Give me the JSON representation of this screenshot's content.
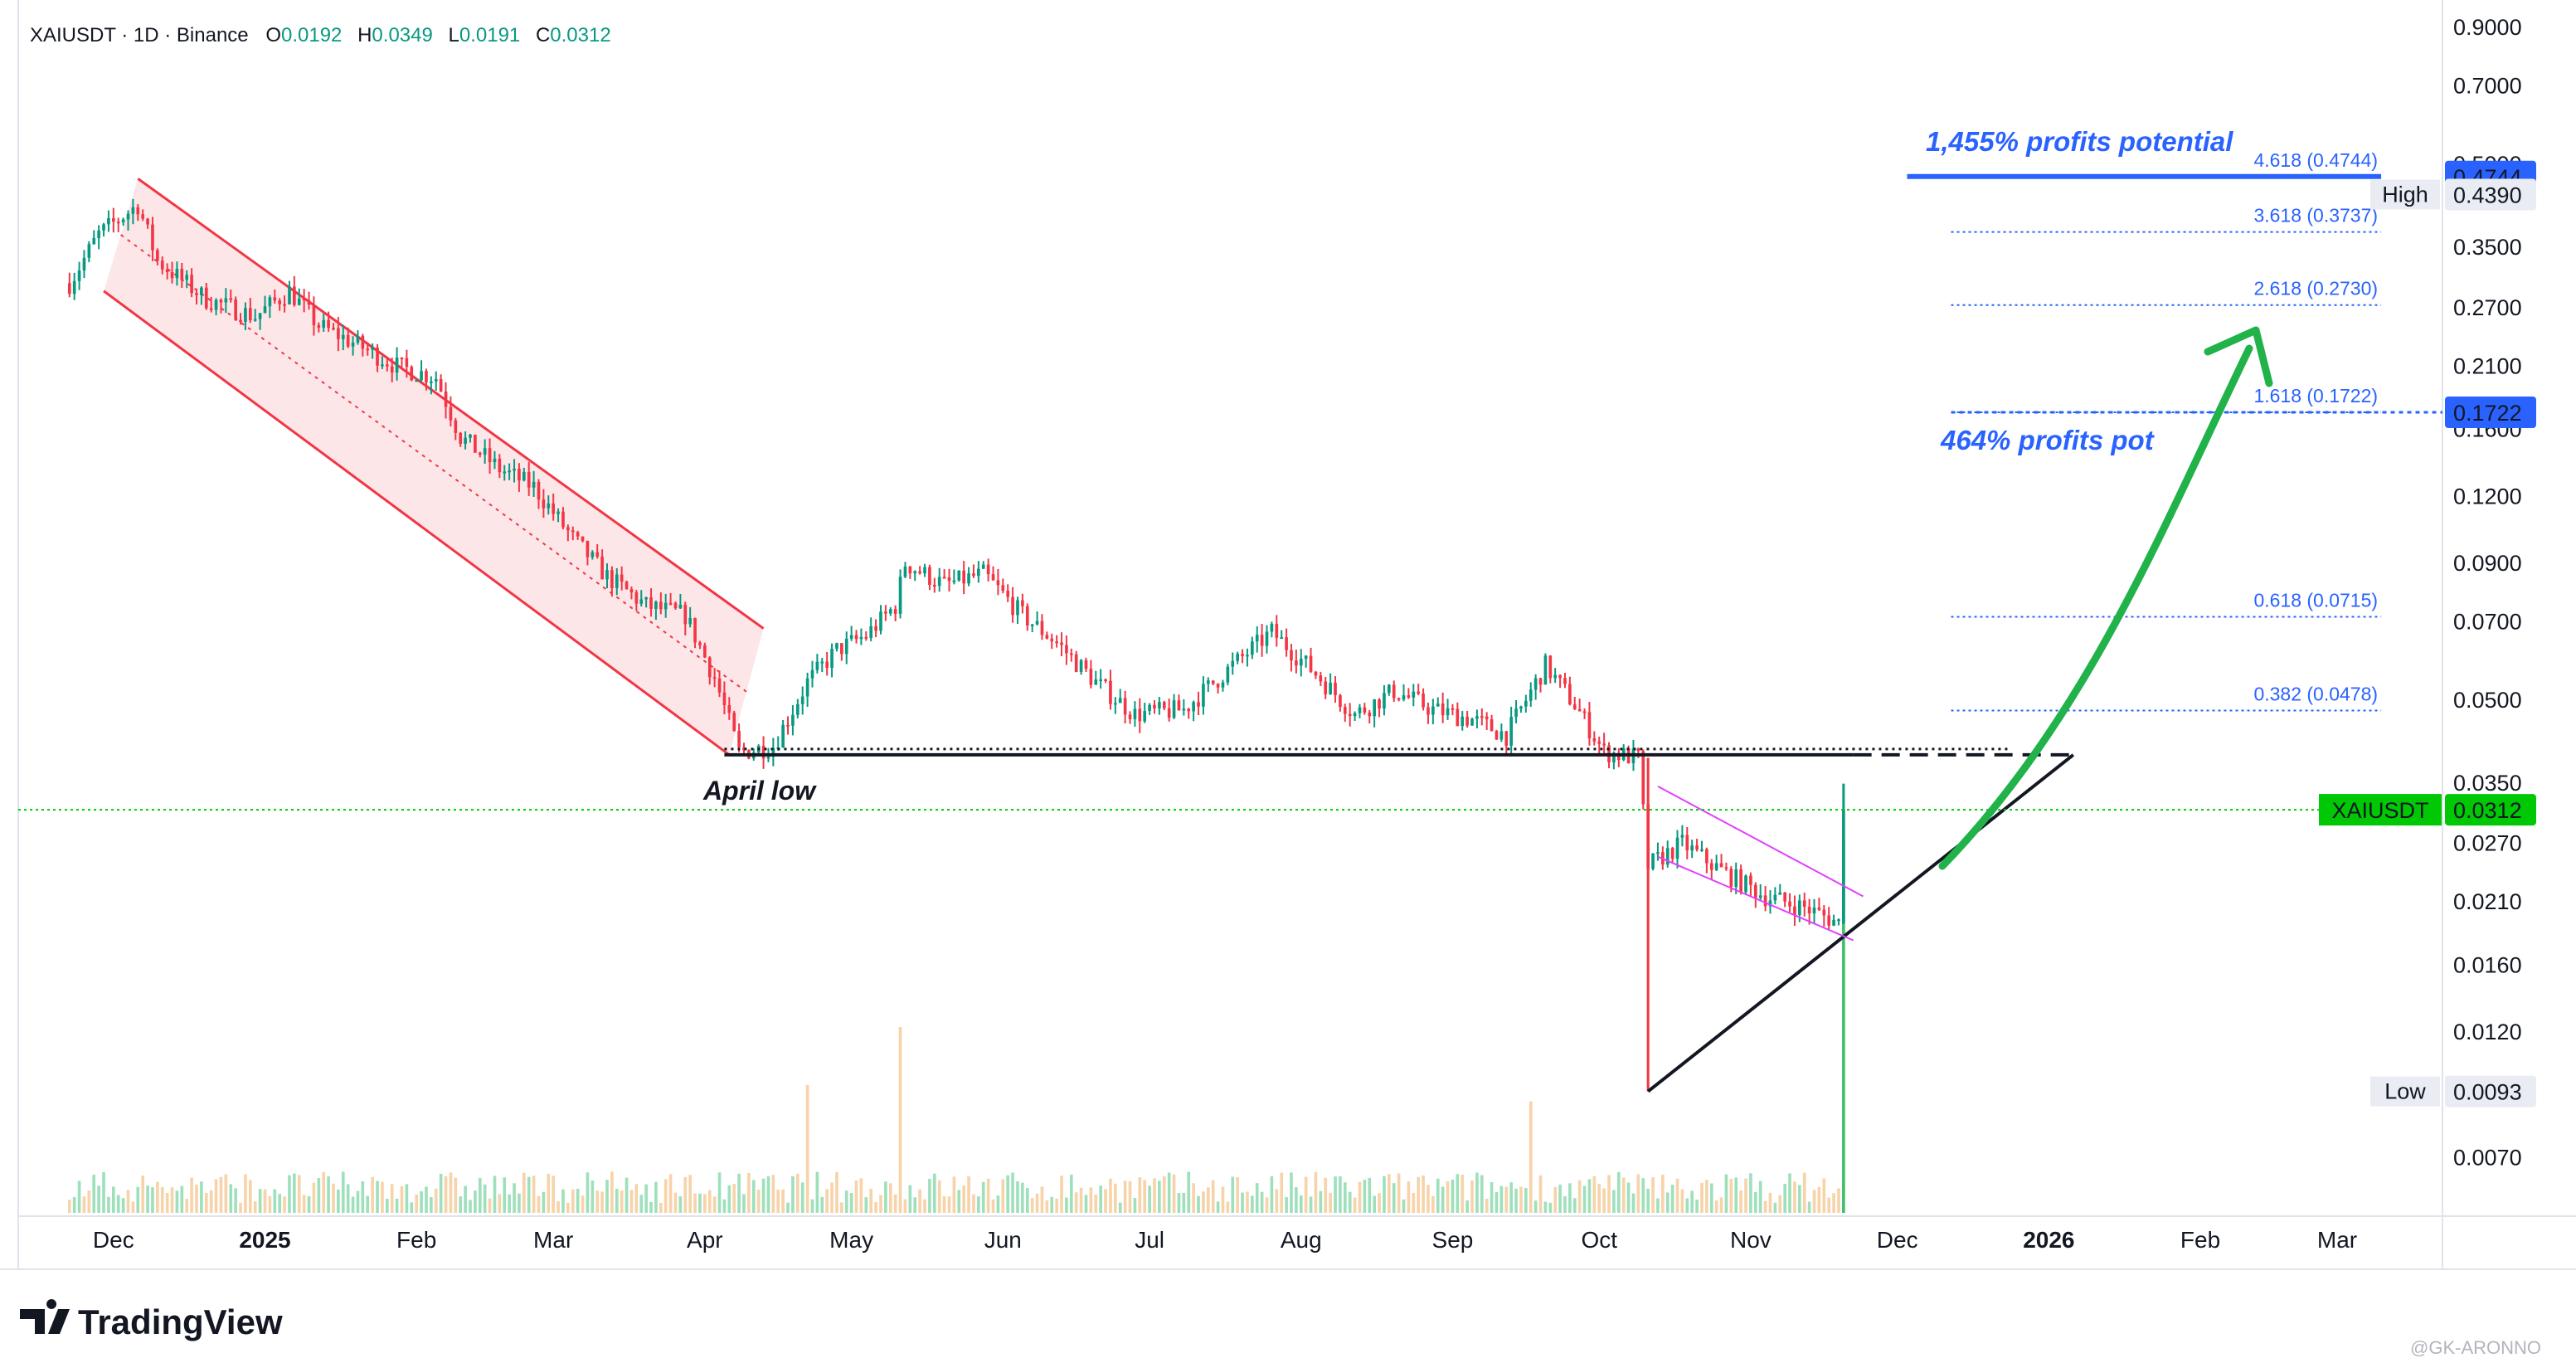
{
  "header": {
    "symbol": "XAIUSDT · 1D · Binance",
    "o_label": "O",
    "o_value": "0.0192",
    "h_label": "H",
    "h_value": "0.0349",
    "l_label": "L",
    "l_value": "0.0191",
    "c_label": "C",
    "c_value": "0.0312"
  },
  "colors": {
    "up": "#089981",
    "down": "#f23645",
    "accent": "#2962ff",
    "arrow": "#21b24a",
    "price_tag": "#00c805",
    "channel_fill": "#fbe2e4",
    "channel_line": "#f23645",
    "wedge_line": "#e040fb"
  },
  "annotations": {
    "profit_top": "1,455% profits potential",
    "profit_mid": "464% profits pot",
    "april_low": "April low"
  },
  "fib_levels": [
    {
      "label": "4.618 (0.4744)",
      "value": 0.4744
    },
    {
      "label": "3.618 (0.3737)",
      "value": 0.3737
    },
    {
      "label": "2.618 (0.2730)",
      "value": 0.273
    },
    {
      "label": "1.618 (0.1722)",
      "value": 0.1722
    },
    {
      "label": "0.618 (0.0715)",
      "value": 0.0715
    },
    {
      "label": "0.382 (0.0478)",
      "value": 0.0478
    }
  ],
  "price_tags": {
    "top_blue": "0.4744",
    "high_label": "High",
    "high_value": "0.4390",
    "mid_blue": "0.1722",
    "current_label": "XAIUSDT",
    "current_value": "0.0312",
    "low_label": "Low",
    "low_value": "0.0093"
  },
  "watermark": "@GK-ARONNO",
  "brand": "TradingView",
  "chart_data": {
    "type": "candlestick",
    "title": "XAIUSDT · 1D · Binance",
    "y_scale": "log",
    "ylim": [
      0.0058,
      0.95
    ],
    "y_ticks": [
      "0.9000",
      "0.7000",
      "0.5000",
      "0.4390",
      "0.3500",
      "0.2700",
      "0.2100",
      "0.1600",
      "0.1200",
      "0.0900",
      "0.0700",
      "0.0500",
      "0.0350",
      "0.0270",
      "0.0210",
      "0.0160",
      "0.0120",
      "0.0093",
      "0.0070"
    ],
    "x_ticks": [
      {
        "label": "Dec",
        "date": "2024-12-01",
        "bold": false
      },
      {
        "label": "2025",
        "date": "2025-01-01",
        "bold": true
      },
      {
        "label": "Feb",
        "date": "2025-02-01",
        "bold": false
      },
      {
        "label": "Mar",
        "date": "2025-03-01",
        "bold": false
      },
      {
        "label": "Apr",
        "date": "2025-04-01",
        "bold": false
      },
      {
        "label": "May",
        "date": "2025-05-01",
        "bold": false
      },
      {
        "label": "Jun",
        "date": "2025-06-01",
        "bold": false
      },
      {
        "label": "Jul",
        "date": "2025-07-01",
        "bold": false
      },
      {
        "label": "Aug",
        "date": "2025-08-01",
        "bold": false
      },
      {
        "label": "Sep",
        "date": "2025-09-01",
        "bold": false
      },
      {
        "label": "Oct",
        "date": "2025-10-01",
        "bold": false
      },
      {
        "label": "Nov",
        "date": "2025-11-01",
        "bold": false
      },
      {
        "label": "Dec",
        "date": "2025-12-01",
        "bold": false
      },
      {
        "label": "2026",
        "date": "2026-01-01",
        "bold": true
      },
      {
        "label": "Feb",
        "date": "2026-02-01",
        "bold": false
      },
      {
        "label": "Mar",
        "date": "2026-03-01",
        "bold": false
      }
    ],
    "price_path": [
      [
        "2024-11-22",
        0.3
      ],
      [
        "2024-11-28",
        0.37
      ],
      [
        "2024-12-06",
        0.42
      ],
      [
        "2024-12-10",
        0.33
      ],
      [
        "2024-12-20",
        0.28
      ],
      [
        "2024-12-30",
        0.26
      ],
      [
        "2025-01-06",
        0.29
      ],
      [
        "2025-01-12",
        0.25
      ],
      [
        "2025-01-20",
        0.23
      ],
      [
        "2025-01-28",
        0.21
      ],
      [
        "2025-02-05",
        0.2
      ],
      [
        "2025-02-10",
        0.155
      ],
      [
        "2025-02-18",
        0.135
      ],
      [
        "2025-02-25",
        0.125
      ],
      [
        "2025-03-05",
        0.1
      ],
      [
        "2025-03-12",
        0.085
      ],
      [
        "2025-03-20",
        0.075
      ],
      [
        "2025-03-28",
        0.072
      ],
      [
        "2025-04-03",
        0.055
      ],
      [
        "2025-04-08",
        0.04
      ],
      [
        "2025-04-15",
        0.041
      ],
      [
        "2025-04-22",
        0.054
      ],
      [
        "2025-04-28",
        0.062
      ],
      [
        "2025-05-04",
        0.066
      ],
      [
        "2025-05-10",
        0.075
      ],
      [
        "2025-05-12",
        0.09
      ],
      [
        "2025-05-20",
        0.082
      ],
      [
        "2025-05-28",
        0.086
      ],
      [
        "2025-06-05",
        0.072
      ],
      [
        "2025-06-12",
        0.064
      ],
      [
        "2025-06-20",
        0.054
      ],
      [
        "2025-06-28",
        0.047
      ],
      [
        "2025-07-08",
        0.048
      ],
      [
        "2025-07-18",
        0.058
      ],
      [
        "2025-07-26",
        0.067
      ],
      [
        "2025-08-04",
        0.056
      ],
      [
        "2025-08-12",
        0.047
      ],
      [
        "2025-08-20",
        0.052
      ],
      [
        "2025-08-28",
        0.048
      ],
      [
        "2025-09-05",
        0.046
      ],
      [
        "2025-09-12",
        0.043
      ],
      [
        "2025-09-20",
        0.058
      ],
      [
        "2025-09-26",
        0.049
      ],
      [
        "2025-10-02",
        0.04
      ],
      [
        "2025-10-09",
        0.039
      ],
      [
        "2025-10-11",
        0.0245
      ],
      [
        "2025-10-18",
        0.027
      ],
      [
        "2025-10-26",
        0.024
      ],
      [
        "2025-11-04",
        0.0215
      ],
      [
        "2025-11-12",
        0.0205
      ],
      [
        "2025-11-19",
        0.0192
      ],
      [
        "2025-11-20",
        0.0312
      ]
    ],
    "ohlc_last": {
      "open": 0.0192,
      "high": 0.0349,
      "low": 0.0191,
      "close": 0.0312
    },
    "range_high": 0.439,
    "range_low": 0.0093,
    "april_low": 0.0395,
    "volume_spikes": [
      {
        "date": "2025-04-22",
        "relative": 0.55
      },
      {
        "date": "2025-05-11",
        "relative": 0.8
      },
      {
        "date": "2025-09-17",
        "relative": 0.48
      },
      {
        "date": "2025-11-20",
        "relative": 1.0
      }
    ]
  }
}
